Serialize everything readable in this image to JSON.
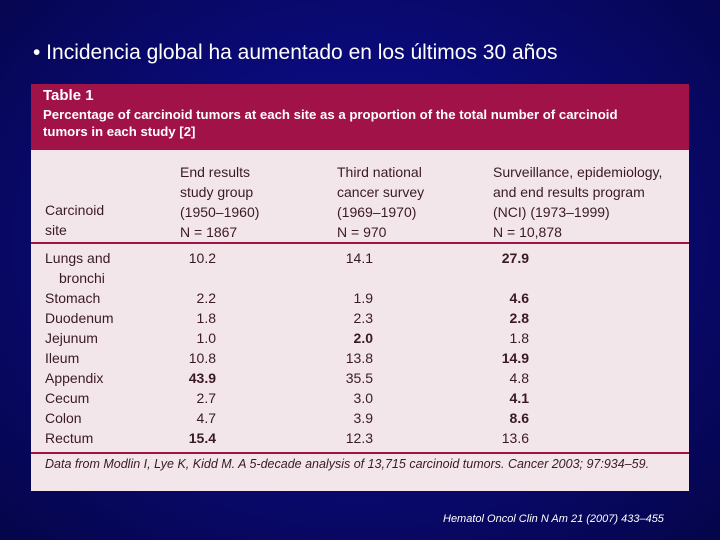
{
  "slide": {
    "bullet": "• Incidencia global ha aumentado en los últimos 30 años",
    "citation": "Hematol Oncol Clin N Am 21 (2007) 433–455"
  },
  "table": {
    "title": "Table 1",
    "caption_line1": "Percentage of carcinoid tumors at each site as a proportion of the total number of carcinoid",
    "caption_line2": "tumors in each study [2]",
    "col_site": [
      "Carcinoid",
      "site"
    ],
    "col1": [
      "End results",
      "study group",
      "(1950–1960)",
      "N = 1867"
    ],
    "col2": [
      "Third national",
      "cancer survey",
      "(1969–1970)",
      "N = 970"
    ],
    "col3": [
      "Surveillance, epidemiology,",
      "and end results program",
      "(NCI) (1973–1999)",
      "N = 10,878"
    ],
    "rows": [
      {
        "site": "Lungs and",
        "site2": "bronchi",
        "v1": "10.2",
        "v2": "14.1",
        "v3": "27.9",
        "b1": false,
        "b2": false,
        "b3": true
      },
      {
        "site": "Stomach",
        "v1": "2.2",
        "v2": "1.9",
        "v3": "4.6",
        "b1": false,
        "b2": false,
        "b3": true
      },
      {
        "site": "Duodenum",
        "v1": "1.8",
        "v2": "2.3",
        "v3": "2.8",
        "b1": false,
        "b2": false,
        "b3": true
      },
      {
        "site": "Jejunum",
        "v1": "1.0",
        "v2": "2.0",
        "v3": "1.8",
        "b1": false,
        "b2": true,
        "b3": false
      },
      {
        "site": "Ileum",
        "v1": "10.8",
        "v2": "13.8",
        "v3": "14.9",
        "b1": false,
        "b2": false,
        "b3": true
      },
      {
        "site": "Appendix",
        "v1": "43.9",
        "v2": "35.5",
        "v3": "4.8",
        "b1": true,
        "b2": false,
        "b3": false
      },
      {
        "site": "Cecum",
        "v1": "2.7",
        "v2": "3.0",
        "v3": "4.1",
        "b1": false,
        "b2": false,
        "b3": true
      },
      {
        "site": "Colon",
        "v1": "4.7",
        "v2": "3.9",
        "v3": "8.6",
        "b1": false,
        "b2": false,
        "b3": true
      },
      {
        "site": "Rectum",
        "v1": "15.4",
        "v2": "12.3",
        "v3": "13.6",
        "b1": true,
        "b2": false,
        "b3": false
      }
    ],
    "source_note": "Data from Modlin I, Lye K, Kidd M. A 5-decade analysis of 13,715 carcinoid tumors. Cancer 2003; 97:934–59.",
    "source_prefix": "Data from"
  }
}
